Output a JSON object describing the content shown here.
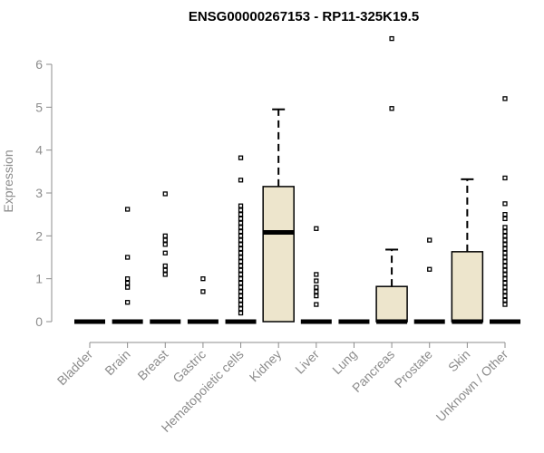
{
  "chart_data": {
    "type": "boxplot",
    "title": "ENSG00000267153 - RP11-325K19.5",
    "xlabel": "",
    "ylabel": "Expression",
    "ylim": [
      0,
      6.5
    ],
    "y_ticks": [
      0,
      1,
      2,
      3,
      4,
      5,
      6
    ],
    "y_tick_labels": [
      "0",
      "1",
      "2",
      "3",
      "4",
      "5",
      "6"
    ],
    "grid": false,
    "box_fill": "#ede5cc",
    "median_color": "#000000",
    "axis_color": "#8c8c8c",
    "categories": [
      "Bladder",
      "Brain",
      "Breast",
      "Gastric",
      "Hematopoietic cells",
      "Kidney",
      "Liver",
      "Lung",
      "Pancreas",
      "Prostate",
      "Skin",
      "Unknown / Other"
    ],
    "boxes": [
      {
        "min": 0,
        "q1": 0,
        "median": 0,
        "q3": 0,
        "max": 0,
        "outliers": []
      },
      {
        "min": 0,
        "q1": 0,
        "median": 0,
        "q3": 0,
        "max": 0,
        "outliers": [
          0.45,
          0.8,
          0.9,
          1.0,
          1.5,
          2.62
        ]
      },
      {
        "min": 0,
        "q1": 0,
        "median": 0,
        "q3": 0,
        "max": 0,
        "outliers": [
          1.1,
          1.2,
          1.3,
          1.6,
          1.8,
          1.9,
          2.0,
          2.98
        ]
      },
      {
        "min": 0,
        "q1": 0,
        "median": 0,
        "q3": 0,
        "max": 0,
        "outliers": [
          0.7,
          1.0
        ]
      },
      {
        "min": 0,
        "q1": 0,
        "median": 0,
        "q3": 0,
        "max": 0,
        "outliers": [
          0.2,
          0.3,
          0.4,
          0.5,
          0.6,
          0.7,
          0.8,
          0.9,
          1.0,
          1.1,
          1.2,
          1.3,
          1.4,
          1.5,
          1.6,
          1.7,
          1.8,
          1.9,
          2.0,
          2.1,
          2.2,
          2.3,
          2.4,
          2.5,
          2.6,
          2.7,
          3.3,
          3.82
        ]
      },
      {
        "min": 0,
        "q1": 0,
        "median": 2.08,
        "q3": 3.15,
        "max": 4.95,
        "outliers": []
      },
      {
        "min": 0,
        "q1": 0,
        "median": 0,
        "q3": 0,
        "max": 0,
        "outliers": [
          0.4,
          0.6,
          0.7,
          0.8,
          0.95,
          1.1,
          2.17
        ]
      },
      {
        "min": 0,
        "q1": 0,
        "median": 0,
        "q3": 0,
        "max": 0,
        "outliers": []
      },
      {
        "min": 0,
        "q1": 0,
        "median": 0,
        "q3": 0.82,
        "max": 1.68,
        "outliers": [
          4.97,
          6.6
        ]
      },
      {
        "min": 0,
        "q1": 0,
        "median": 0,
        "q3": 0,
        "max": 0,
        "outliers": [
          1.22,
          1.9
        ]
      },
      {
        "min": 0,
        "q1": 0,
        "median": 0,
        "q3": 1.63,
        "max": 3.32,
        "outliers": []
      },
      {
        "min": 0,
        "q1": 0,
        "median": 0,
        "q3": 0,
        "max": 0,
        "outliers": [
          0.4,
          0.5,
          0.6,
          0.7,
          0.8,
          0.9,
          1.0,
          1.1,
          1.2,
          1.3,
          1.4,
          1.5,
          1.6,
          1.7,
          1.8,
          1.9,
          2.0,
          2.1,
          2.2,
          2.4,
          2.5,
          2.75,
          3.35,
          5.2
        ]
      }
    ]
  }
}
